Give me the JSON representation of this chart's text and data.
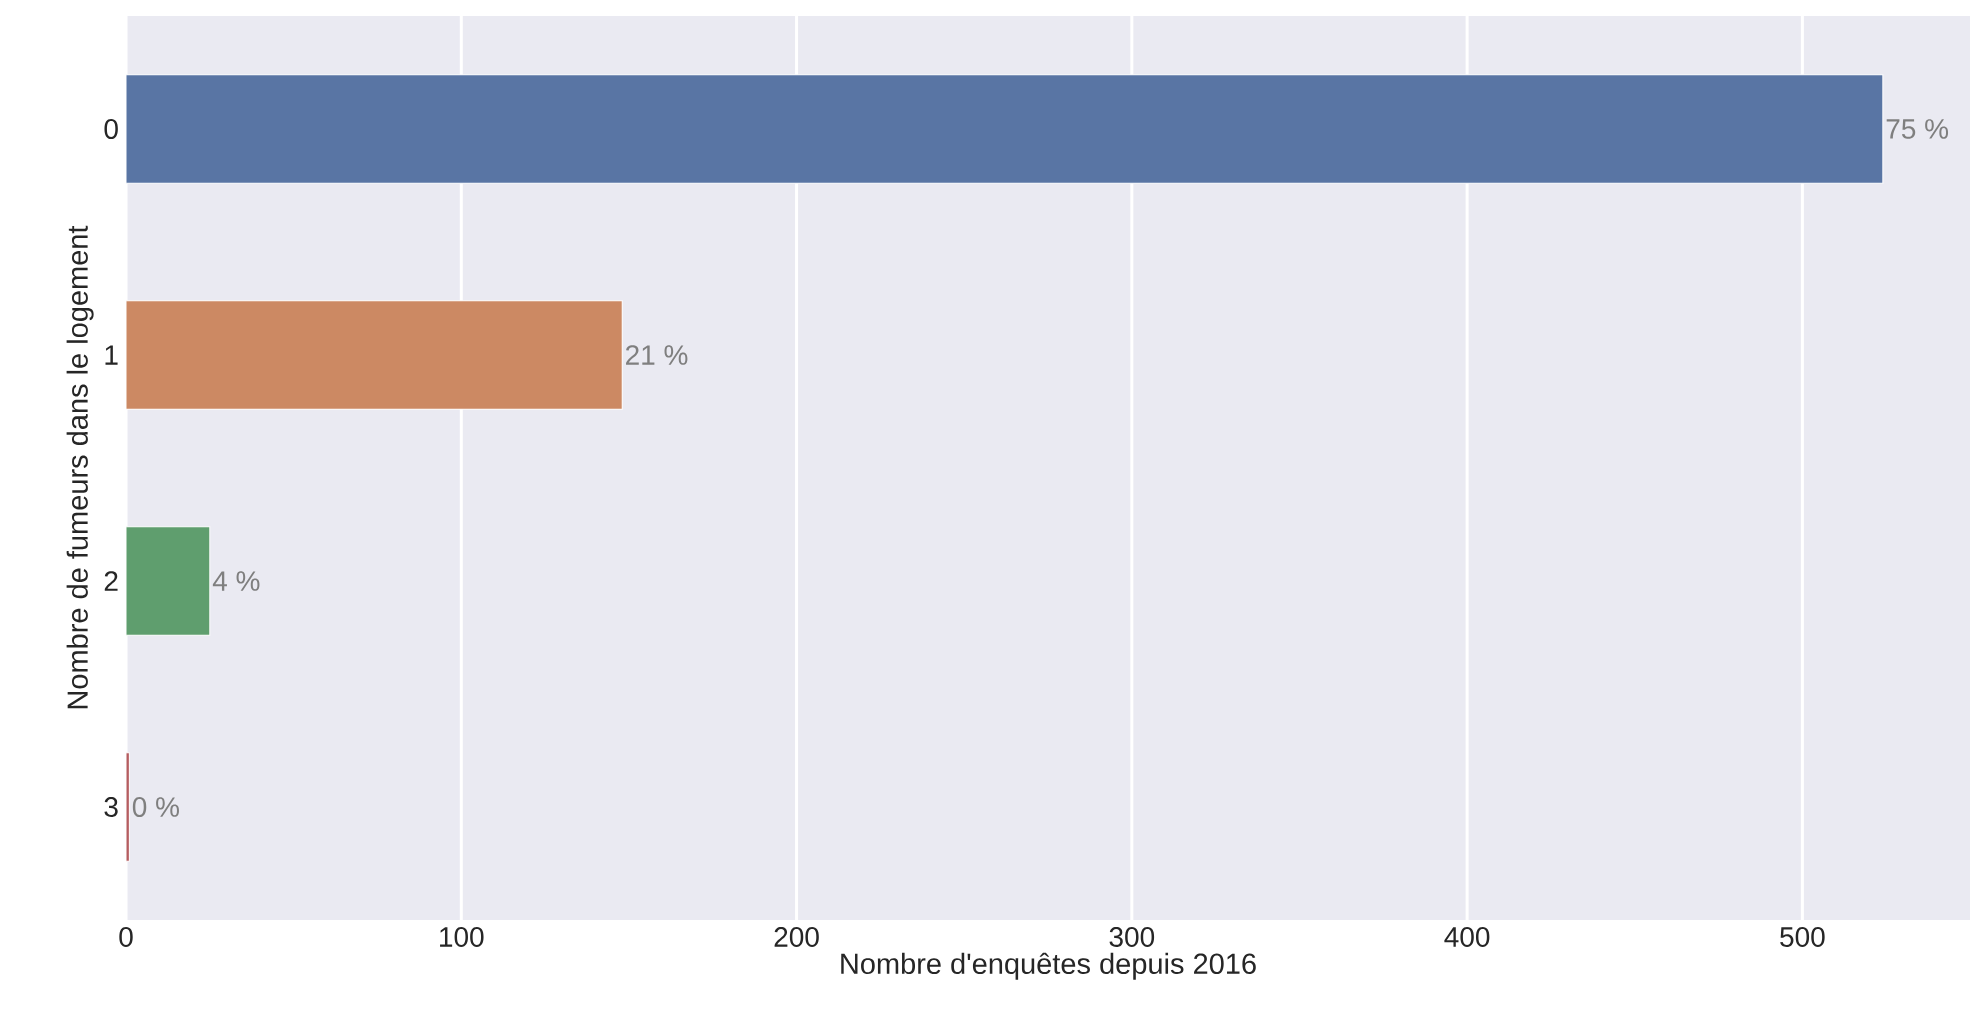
{
  "chart_data": {
    "type": "bar",
    "orientation": "horizontal",
    "xlabel": "Nombre d'enquêtes depuis 2016",
    "ylabel": "Nombre de fumeurs dans le logement",
    "categories": [
      "0",
      "1",
      "2",
      "3"
    ],
    "values": [
      524,
      148,
      25,
      1
    ],
    "colors": [
      "#5975a4",
      "#cc8963",
      "#5f9e6e",
      "#b55d60"
    ],
    "annotations": [
      {
        "text": "75 %",
        "x": 524,
        "y": "0"
      },
      {
        "text": "21 %",
        "x": 148,
        "y": "1"
      },
      {
        "text": "4 %",
        "x": 25,
        "y": "2"
      },
      {
        "text": "0 %",
        "x": 1,
        "y": "3"
      }
    ],
    "xlim": [
      0,
      550
    ],
    "xticks": [
      0,
      100,
      200,
      300,
      400,
      500
    ],
    "grid": "x"
  }
}
